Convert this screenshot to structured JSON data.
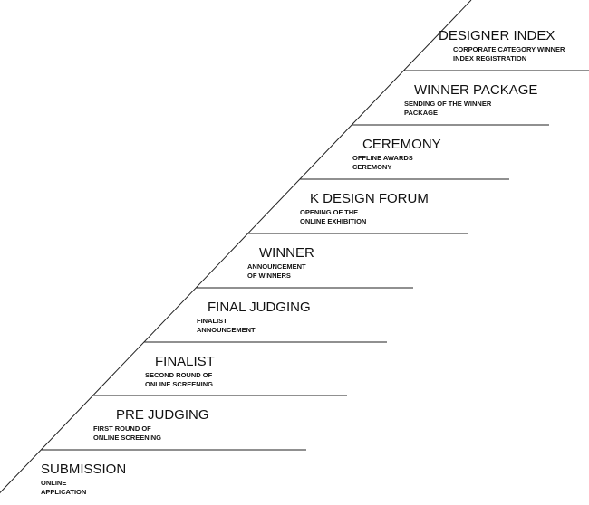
{
  "steps": [
    {
      "title": "SUBMISSION",
      "lines": [
        "ONLINE",
        "APPLICATION"
      ]
    },
    {
      "title": "PRE JUDGING",
      "lines": [
        "FIRST ROUND OF",
        "ONLINE SCREENING"
      ]
    },
    {
      "title": "FINALIST",
      "lines": [
        "SECOND ROUND OF",
        "ONLINE SCREENING"
      ]
    },
    {
      "title": "FINAL JUDGING",
      "lines": [
        "FINALIST",
        "ANNOUNCEMENT"
      ]
    },
    {
      "title": "WINNER",
      "lines": [
        "ANNOUNCEMENT",
        "OF WINNERS"
      ]
    },
    {
      "title": "K DESIGN FORUM",
      "lines": [
        "OPENING OF THE",
        "ONLINE EXHIBITION"
      ]
    },
    {
      "title": "CEREMONY",
      "lines": [
        "OFFLINE AWARDS",
        "CEREMONY"
      ]
    },
    {
      "title": "WINNER PACKAGE",
      "lines": [
        "SENDING OF THE WINNER",
        "PACKAGE"
      ]
    },
    {
      "title": "DESIGNER INDEX",
      "lines": [
        "CORPORATE CATEGORY WINNER",
        "INDEX REGISTRATION"
      ]
    }
  ]
}
